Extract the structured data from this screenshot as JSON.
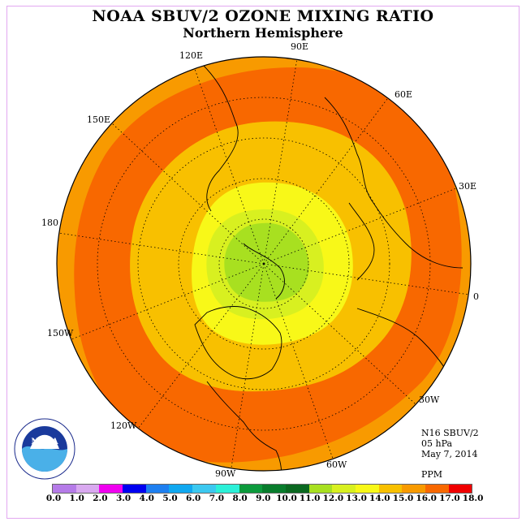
{
  "title": "NOAA SBUV/2 OZONE MIXING RATIO",
  "subtitle": "Northern Hemisphere",
  "longitude_labels": [
    "90E",
    "60E",
    "30E",
    "0",
    "30W",
    "60W",
    "90W",
    "120W",
    "150W",
    "180",
    "150E",
    "120E"
  ],
  "info": {
    "instrument": "N16 SBUV/2",
    "level": "05 hPa",
    "date": "May 7, 2014",
    "unit": "PPM"
  },
  "logo_text": "NOAA",
  "logo_ring": "NATIONAL OCEANIC AND ATMOSPHERIC ADMINISTRATION · U.S. DEPARTMENT OF COMMERCE",
  "colorbar": {
    "ticks": [
      "0.0",
      "1.0",
      "2.0",
      "3.0",
      "4.0",
      "5.0",
      "6.0",
      "7.0",
      "8.0",
      "9.0",
      "10.0",
      "11.0",
      "12.0",
      "13.0",
      "14.0",
      "15.0",
      "16.0",
      "17.0",
      "18.0"
    ],
    "colors": [
      "#b57be8",
      "#d9a9f0",
      "#f000f0",
      "#0000f0",
      "#1e7ff0",
      "#10a8f0",
      "#3cc8f0",
      "#2cf0d8",
      "#0c9a3c",
      "#087c2c",
      "#0a6820",
      "#a8e020",
      "#d8f020",
      "#f8f818",
      "#f8c000",
      "#f89a00",
      "#f86800",
      "#f00000",
      "#8c5030"
    ]
  },
  "field_colors": {
    "outer": "#f89a00",
    "band": "#f86800",
    "ring14": "#f8c000",
    "ring13": "#f8f818",
    "ring12": "#d8f020",
    "ring11": "#a8e020"
  }
}
